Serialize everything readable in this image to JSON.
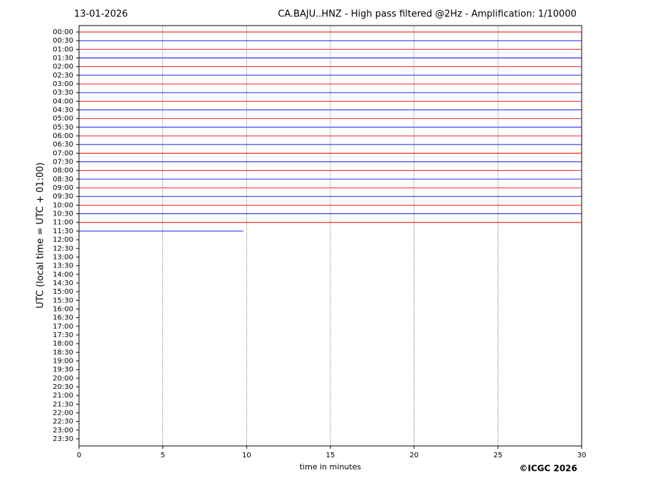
{
  "chart_data": {
    "type": "helicorder",
    "date": "13-01-2026",
    "title": "CA.BAJU..HNZ - High pass filtered @2Hz - Amplification: 1/10000",
    "ylabel": "UTC (local time = UTC + 01:00)",
    "xlabel": "time in minutes",
    "credit": "©ICGC 2026",
    "categories": [
      "00:00",
      "00:30",
      "01:00",
      "01:30",
      "02:00",
      "02:30",
      "03:00",
      "03:30",
      "04:00",
      "04:30",
      "05:00",
      "05:30",
      "06:00",
      "06:30",
      "07:00",
      "07:30",
      "08:00",
      "08:30",
      "09:00",
      "09:30",
      "10:00",
      "10:30",
      "11:00",
      "11:30",
      "12:00",
      "12:30",
      "13:00",
      "13:30",
      "14:00",
      "14:30",
      "15:00",
      "15:30",
      "16:00",
      "16:30",
      "17:00",
      "17:30",
      "18:00",
      "18:30",
      "19:00",
      "19:30",
      "20:00",
      "20:30",
      "21:00",
      "21:30",
      "22:00",
      "22:30",
      "23:00",
      "23:30"
    ],
    "x_end": [
      30,
      30,
      30,
      30,
      30,
      30,
      30,
      30,
      30,
      30,
      30,
      30,
      30,
      30,
      30,
      30,
      30,
      30,
      30,
      30,
      30,
      30,
      30,
      9.8,
      null,
      null,
      null,
      null,
      null,
      null,
      null,
      null,
      null,
      null,
      null,
      null,
      null,
      null,
      null,
      null,
      null,
      null,
      null,
      null,
      null,
      null,
      null,
      null
    ],
    "colors": [
      "#ff0000",
      "#0000ff"
    ],
    "xlim": [
      0,
      30
    ],
    "xticks": [
      0,
      5,
      10,
      15,
      20,
      25,
      30
    ],
    "grid": true
  }
}
